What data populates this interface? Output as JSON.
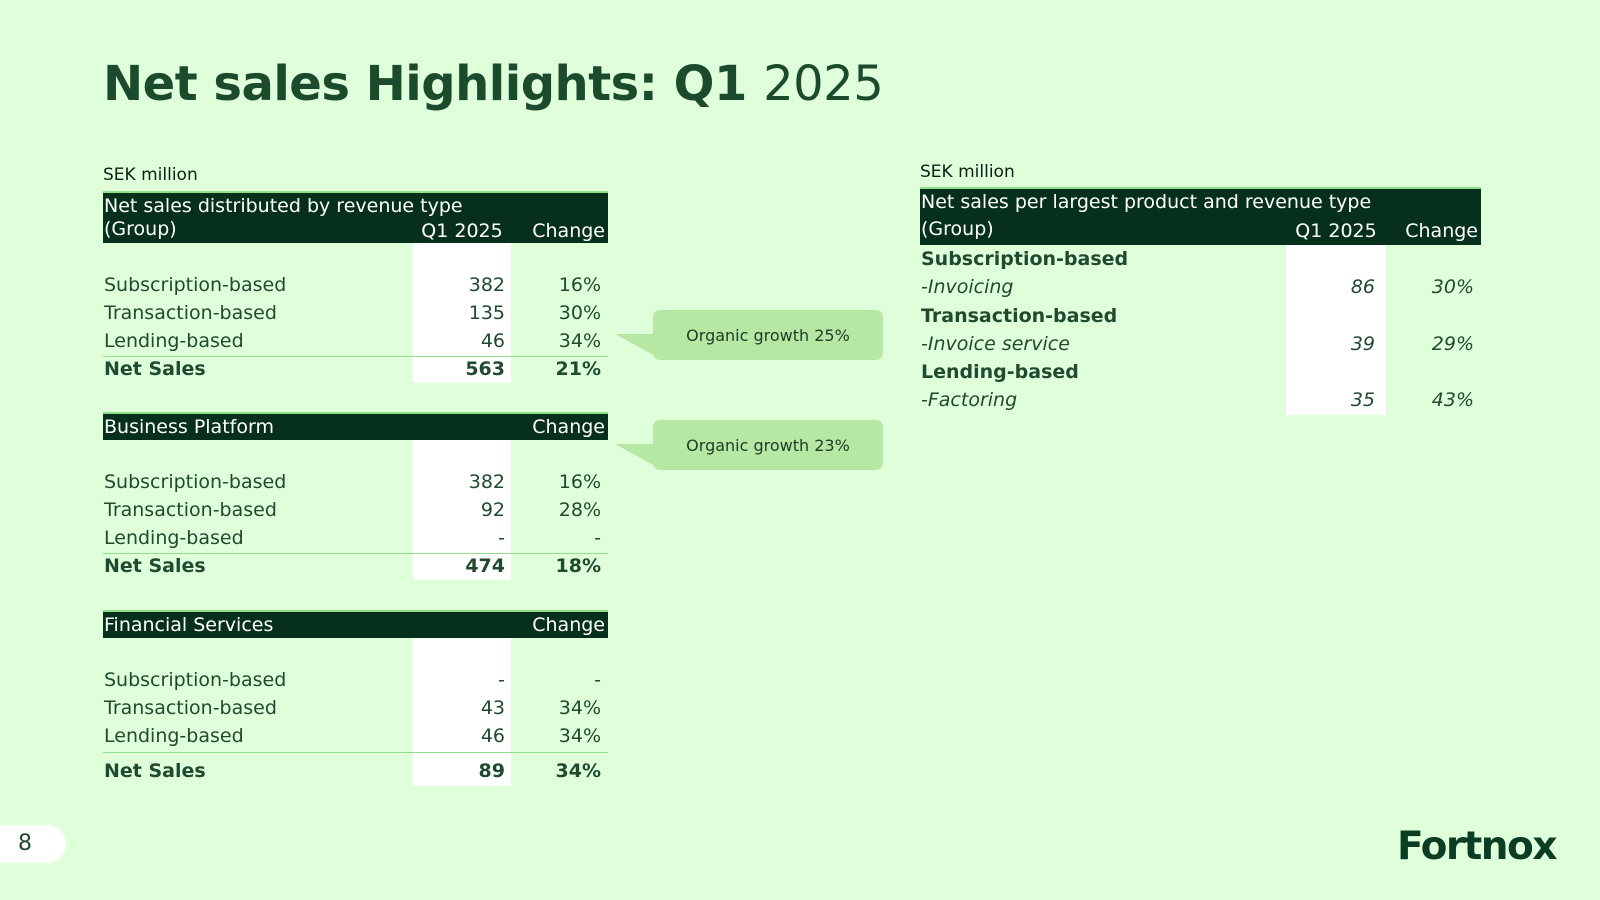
{
  "title": {
    "bold": "Net sales Highlights: Q1",
    "light": "2025"
  },
  "unit_label": "SEK million",
  "table_group": {
    "header_line1": "Net sales distributed by revenue type",
    "header_line2": "(Group)",
    "col_q": "Q1 2025",
    "col_change": "Change",
    "rows": [
      {
        "label": "Subscription-based",
        "value": "382",
        "change": "16%"
      },
      {
        "label": "Transaction-based",
        "value": "135",
        "change": "30%"
      },
      {
        "label": "Lending-based",
        "value": "46",
        "change": "34%"
      }
    ],
    "total": {
      "label": "Net Sales",
      "value": "563",
      "change": "21%"
    }
  },
  "table_platform": {
    "header": "Business Platform",
    "col_change": "Change",
    "rows": [
      {
        "label": "Subscription-based",
        "value": "382",
        "change": "16%"
      },
      {
        "label": "Transaction-based",
        "value": "92",
        "change": "28%"
      },
      {
        "label": "Lending-based",
        "value": "-",
        "change": "-"
      }
    ],
    "total": {
      "label": "Net Sales",
      "value": "474",
      "change": "18%"
    }
  },
  "table_financial": {
    "header": "Financial Services",
    "col_change": "Change",
    "rows": [
      {
        "label": "Subscription-based",
        "value": "-",
        "change": "-"
      },
      {
        "label": "Transaction-based",
        "value": "43",
        "change": "34%"
      },
      {
        "label": "Lending-based",
        "value": "46",
        "change": "34%"
      }
    ],
    "total": {
      "label": "Net Sales",
      "value": "89",
      "change": "34%"
    }
  },
  "table_product": {
    "header_line1": "Net sales per largest product and revenue type",
    "header_line2": "(Group)",
    "col_q": "Q1 2025",
    "col_change": "Change",
    "rows": [
      {
        "label": "Subscription-based",
        "value": "",
        "change": ""
      },
      {
        "label": "-Invoicing",
        "value": "86",
        "change": "30%"
      },
      {
        "label": "Transaction-based",
        "value": "",
        "change": ""
      },
      {
        "label": "-Invoice service",
        "value": "39",
        "change": "29%"
      },
      {
        "label": "Lending-based",
        "value": "",
        "change": ""
      },
      {
        "label": "-Factoring",
        "value": "35",
        "change": "43%"
      }
    ]
  },
  "callouts": {
    "group": "Organic growth 25%",
    "platform": "Organic growth 23%"
  },
  "page_number": "8",
  "logo_text": "Fortnox",
  "colors": {
    "background": "#dfffdb",
    "header": "#06301c",
    "accent_line": "#8fe08a",
    "callout": "#b6e8a4"
  }
}
